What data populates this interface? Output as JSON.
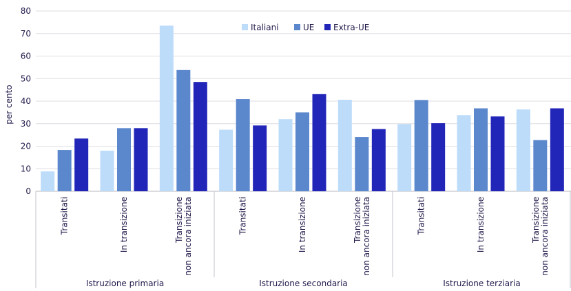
{
  "chart_data": {
    "type": "bar",
    "ylabel": "per cento",
    "ylim": [
      0,
      80
    ],
    "yticks": [
      0,
      10,
      20,
      30,
      40,
      50,
      60,
      70,
      80
    ],
    "groups": [
      "Istruzione primaria",
      "Istruzione secondaria",
      "Istruzione terziaria"
    ],
    "subcategories": [
      [
        "Transitati"
      ],
      [
        "In transizione"
      ],
      [
        "Transizione",
        "non ancora iniziata"
      ]
    ],
    "series": [
      {
        "name": "Italiani",
        "color": "#bcdcfa",
        "values": [
          8.8,
          18.0,
          73.5,
          27.3,
          32.0,
          40.6,
          29.8,
          33.8,
          36.3
        ]
      },
      {
        "name": "UE",
        "color": "#5b87cd",
        "values": [
          18.3,
          28.0,
          53.8,
          40.9,
          35.0,
          24.1,
          40.5,
          36.8,
          22.7
        ]
      },
      {
        "name": "Extra-UE",
        "color": "#2226b8",
        "values": [
          23.4,
          28.0,
          48.5,
          29.2,
          43.1,
          27.6,
          30.2,
          33.2,
          36.8
        ]
      }
    ],
    "legend_position": "top-center",
    "grid": true
  }
}
